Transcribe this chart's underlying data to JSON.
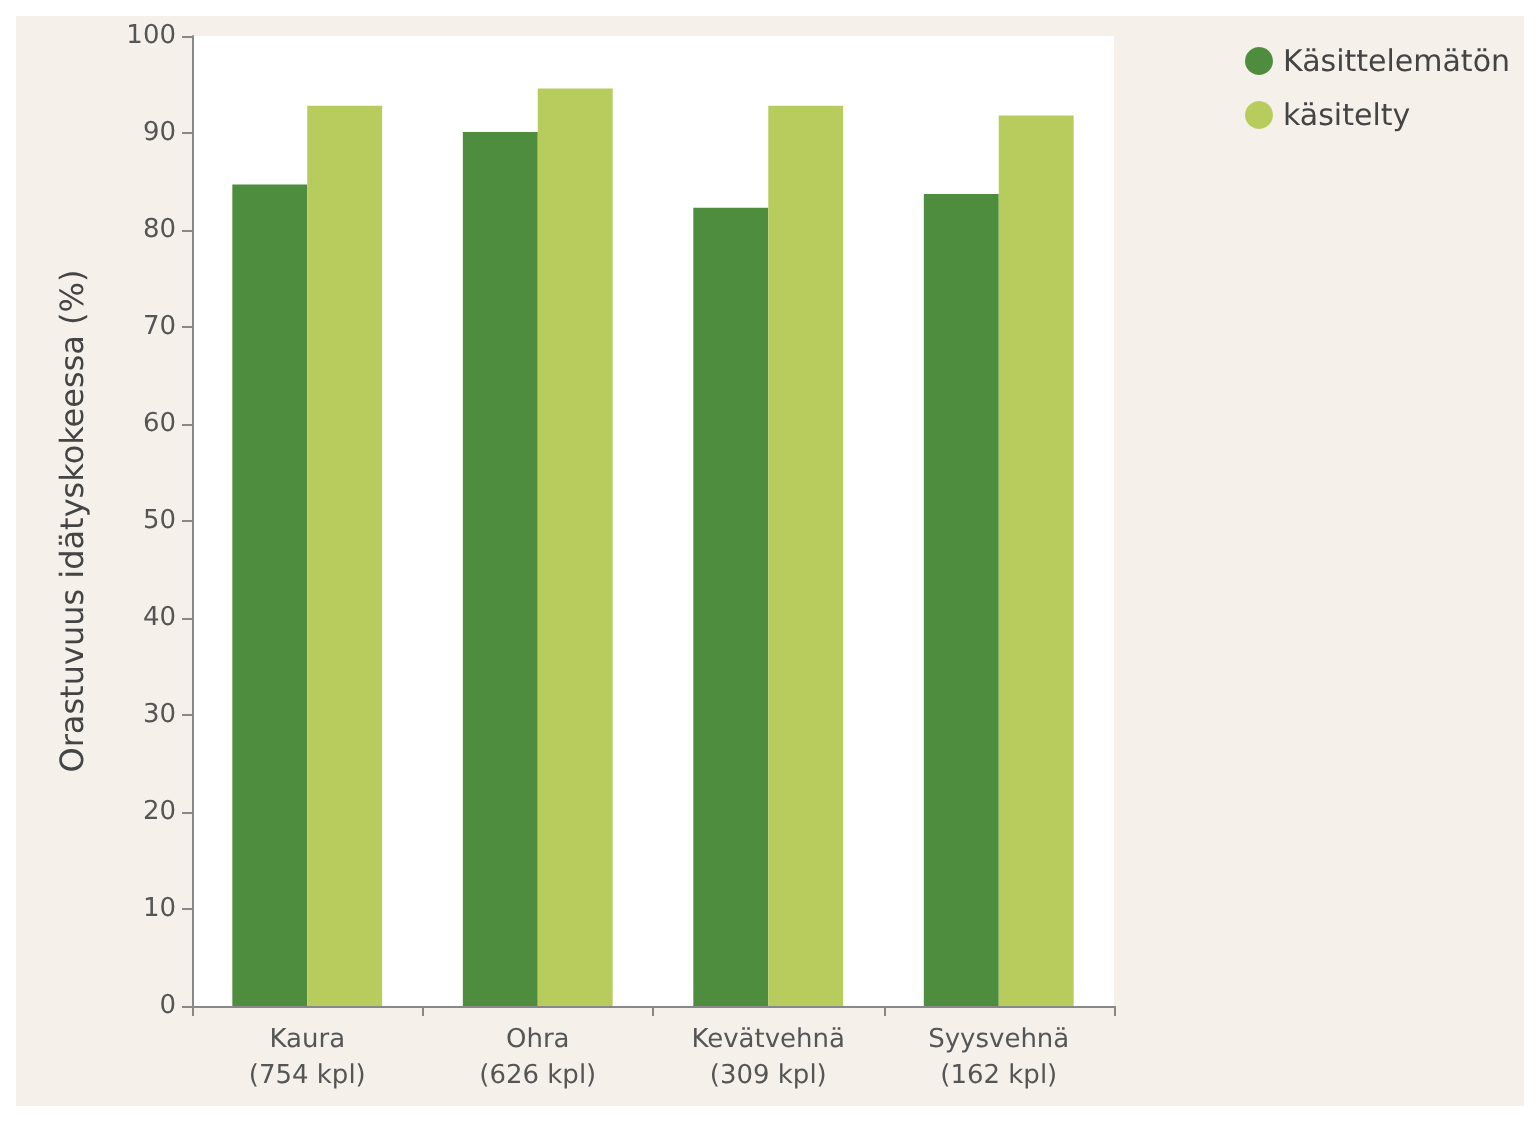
{
  "chart_data": {
    "type": "bar",
    "ylabel": "Orastuvuus idätyskokeessa (%)",
    "categories": [
      "Kaura\n(754 kpl)",
      "Ohra\n(626 kpl)",
      "Kevätvehnä\n(309 kpl)",
      "Syysvehnä\n(162 kpl)"
    ],
    "series": [
      {
        "name": "Käsittelemätön",
        "color": "#4e8c3e",
        "values": [
          84.7,
          90.1,
          82.3,
          83.7
        ]
      },
      {
        "name": "käsitelty",
        "color": "#b8cc5e",
        "values": [
          92.8,
          94.6,
          92.8,
          91.8
        ]
      }
    ],
    "ylim": [
      0,
      100
    ],
    "yticks": [
      0,
      10,
      20,
      30,
      40,
      50,
      60,
      70,
      80,
      90,
      100
    ],
    "grid": false,
    "legend": "top right"
  }
}
